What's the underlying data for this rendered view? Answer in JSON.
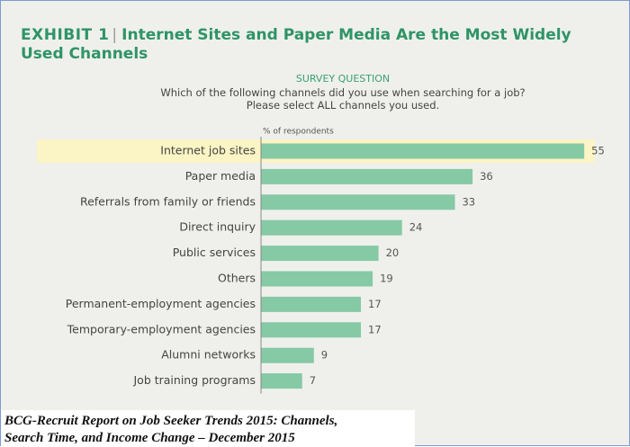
{
  "chart_data": {
    "type": "bar",
    "exhibit_label": "EXHIBIT 1",
    "separator": "|",
    "title": "Internet Sites and Paper Media Are the Most Widely Used Channels",
    "subtitle": "SURVEY QUESTION",
    "question": [
      "Which of the following channels did you use when searching for a job?",
      "Please select ALL channels you used."
    ],
    "axis_label": "% of respondents",
    "categories": [
      "Internet job sites",
      "Paper media",
      "Referrals from family or friends",
      "Direct inquiry",
      "Public services",
      "Others",
      "Permanent-employment agencies",
      "Temporary-employment agencies",
      "Alumni networks",
      "Job training programs"
    ],
    "values": [
      55,
      36,
      33,
      24,
      20,
      19,
      17,
      17,
      9,
      7
    ],
    "color": "#86c9a5",
    "highlight_category_index": 0,
    "highlight_color": "#fbf4c4",
    "caption": [
      "BCG-Recruit Report on Job Seeker Trends 2015: Channels,",
      "Search Time, and Income Change – December 2015"
    ]
  }
}
